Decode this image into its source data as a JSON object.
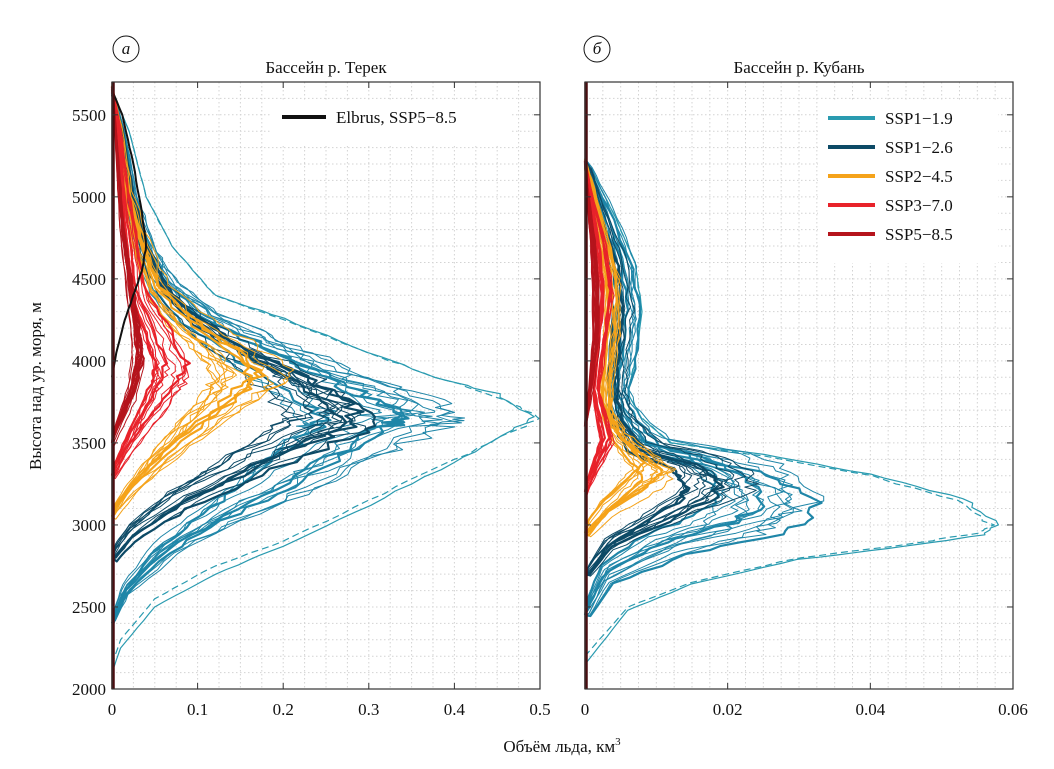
{
  "chart_data": [
    {
      "type": "line",
      "panel_letter": "а",
      "title": "Бассейн р. Терек",
      "xlabel": "Объём льда, км",
      "xlabel_superscript": "3",
      "ylabel": "Высота над ур. моря, м",
      "xlim": [
        0,
        0.5
      ],
      "ylim": [
        2000,
        5700
      ],
      "xticks": [
        "0",
        "0.1",
        "0.2",
        "0.3",
        "0.4",
        "0.5"
      ],
      "xtick_values": [
        0,
        0.1,
        0.2,
        0.3,
        0.4,
        0.5
      ],
      "yticks": [
        "2000",
        "2500",
        "3000",
        "3500",
        "4000",
        "4500",
        "5000",
        "5500"
      ],
      "ytick_values": [
        2000,
        2500,
        3000,
        3500,
        4000,
        4500,
        5000,
        5500
      ],
      "grid": true,
      "legend": {
        "placement": "top-right",
        "entries": [
          {
            "label": "Elbrus, SSP5−8.5",
            "color": "#111111"
          }
        ]
      },
      "series": [
        {
          "name": "SSP1-1.9 (initial, dashed)",
          "color": "#2a9bb0",
          "dashed": true,
          "points": [
            [
              0,
              2150
            ],
            [
              0.01,
              2300
            ],
            [
              0.05,
              2550
            ],
            [
              0.12,
              2750
            ],
            [
              0.2,
              2900
            ],
            [
              0.3,
              3150
            ],
            [
              0.4,
              3400
            ],
            [
              0.48,
              3600
            ],
            [
              0.5,
              3660
            ],
            [
              0.45,
              3780
            ],
            [
              0.38,
              3900
            ],
            [
              0.3,
              4050
            ],
            [
              0.2,
              4250
            ],
            [
              0.12,
              4400
            ],
            [
              0.07,
              4700
            ],
            [
              0.04,
              5000
            ],
            [
              0.02,
              5400
            ],
            [
              0,
              5650
            ]
          ]
        },
        {
          "name": "SSP1-1.9 (initial)",
          "color": "#2a9bb0",
          "dashed": false,
          "points": [
            [
              0,
              2100
            ],
            [
              0.01,
              2250
            ],
            [
              0.05,
              2500
            ],
            [
              0.12,
              2700
            ],
            [
              0.2,
              2870
            ],
            [
              0.3,
              3120
            ],
            [
              0.4,
              3380
            ],
            [
              0.47,
              3580
            ],
            [
              0.49,
              3660
            ],
            [
              0.45,
              3800
            ],
            [
              0.38,
              3900
            ],
            [
              0.3,
              4050
            ],
            [
              0.2,
              4260
            ],
            [
              0.12,
              4400
            ],
            [
              0.07,
              4700
            ],
            [
              0.04,
              5000
            ],
            [
              0.02,
              5400
            ],
            [
              0,
              5650
            ]
          ]
        },
        {
          "name": "SSP1-1.9",
          "color": "#1f86a8",
          "dashed": false,
          "points": [
            [
              0,
              2400
            ],
            [
              0.02,
              2600
            ],
            [
              0.08,
              2850
            ],
            [
              0.16,
              3050
            ],
            [
              0.25,
              3250
            ],
            [
              0.33,
              3450
            ],
            [
              0.4,
              3620
            ],
            [
              0.41,
              3660
            ],
            [
              0.37,
              3780
            ],
            [
              0.3,
              3920
            ],
            [
              0.22,
              4080
            ],
            [
              0.14,
              4250
            ],
            [
              0.08,
              4450
            ],
            [
              0.05,
              4700
            ],
            [
              0.03,
              5000
            ],
            [
              0.015,
              5400
            ],
            [
              0,
              5650
            ]
          ]
        },
        {
          "name": "SSP1-2.6",
          "color": "#0d4a66",
          "dashed": false,
          "points": [
            [
              0,
              2800
            ],
            [
              0.03,
              2950
            ],
            [
              0.1,
              3150
            ],
            [
              0.2,
              3350
            ],
            [
              0.3,
              3550
            ],
            [
              0.35,
              3650
            ],
            [
              0.32,
              3780
            ],
            [
              0.27,
              3920
            ],
            [
              0.2,
              4060
            ],
            [
              0.13,
              4240
            ],
            [
              0.08,
              4430
            ],
            [
              0.05,
              4700
            ],
            [
              0.03,
              5000
            ],
            [
              0.015,
              5400
            ],
            [
              0,
              5650
            ]
          ]
        },
        {
          "name": "SSP2-4.5",
          "color": "#f5a31a",
          "dashed": false,
          "points": [
            [
              0,
              3050
            ],
            [
              0.03,
              3200
            ],
            [
              0.08,
              3400
            ],
            [
              0.14,
              3600
            ],
            [
              0.2,
              3800
            ],
            [
              0.22,
              3900
            ],
            [
              0.18,
              4050
            ],
            [
              0.12,
              4220
            ],
            [
              0.07,
              4420
            ],
            [
              0.045,
              4700
            ],
            [
              0.025,
              5000
            ],
            [
              0.012,
              5400
            ],
            [
              0,
              5650
            ]
          ]
        },
        {
          "name": "SSP3-7.0",
          "color": "#e8222a",
          "dashed": false,
          "points": [
            [
              0,
              3300
            ],
            [
              0.02,
              3450
            ],
            [
              0.05,
              3650
            ],
            [
              0.08,
              3850
            ],
            [
              0.09,
              3950
            ],
            [
              0.07,
              4150
            ],
            [
              0.04,
              4400
            ],
            [
              0.03,
              4700
            ],
            [
              0.02,
              5000
            ],
            [
              0.01,
              5400
            ],
            [
              0,
              5650
            ]
          ]
        },
        {
          "name": "SSP5-8.5",
          "color": "#b5141c",
          "dashed": false,
          "points": [
            [
              0,
              3500
            ],
            [
              0.01,
              3600
            ],
            [
              0.03,
              3800
            ],
            [
              0.04,
              4000
            ],
            [
              0.035,
              4200
            ],
            [
              0.025,
              4500
            ],
            [
              0.015,
              4800
            ],
            [
              0.01,
              5100
            ],
            [
              0.005,
              5400
            ],
            [
              0,
              5650
            ]
          ]
        },
        {
          "name": "Elbrus, SSP5-8.5",
          "color": "#111111",
          "dashed": false,
          "points": [
            [
              0,
              3900
            ],
            [
              0.005,
              4050
            ],
            [
              0.015,
              4250
            ],
            [
              0.025,
              4400
            ],
            [
              0.035,
              4550
            ],
            [
              0.04,
              4700
            ],
            [
              0.035,
              4900
            ],
            [
              0.025,
              5200
            ],
            [
              0.012,
              5500
            ],
            [
              0,
              5650
            ]
          ]
        }
      ]
    },
    {
      "type": "line",
      "panel_letter": "б",
      "title": "Бассейн р. Кубань",
      "xlim": [
        0,
        0.06
      ],
      "ylim": [
        2000,
        5700
      ],
      "xticks": [
        "0",
        "0.02",
        "0.04",
        "0.06"
      ],
      "xtick_values": [
        0,
        0.02,
        0.04,
        0.06
      ],
      "grid": true,
      "legend": {
        "placement": "top-right",
        "entries": [
          {
            "label": "SSP1−1.9",
            "color": "#2a9bb0"
          },
          {
            "label": "SSP1−2.6",
            "color": "#0d4a66"
          },
          {
            "label": "SSP2−4.5",
            "color": "#f5a31a"
          },
          {
            "label": "SSP3−7.0",
            "color": "#e8222a"
          },
          {
            "label": "SSP5−8.5",
            "color": "#b5141c"
          }
        ]
      },
      "series": [
        {
          "name": "SSP1-1.9 (initial, dashed)",
          "color": "#2a9bb0",
          "dashed": true,
          "points": [
            [
              0,
              2200
            ],
            [
              0.006,
              2500
            ],
            [
              0.015,
              2650
            ],
            [
              0.03,
              2800
            ],
            [
              0.045,
              2880
            ],
            [
              0.055,
              2950
            ],
            [
              0.057,
              3000
            ],
            [
              0.052,
              3150
            ],
            [
              0.04,
              3300
            ],
            [
              0.025,
              3420
            ],
            [
              0.012,
              3500
            ],
            [
              0.008,
              3650
            ],
            [
              0.006,
              3800
            ],
            [
              0.007,
              4000
            ],
            [
              0.008,
              4300
            ],
            [
              0.007,
              4600
            ],
            [
              0.004,
              4900
            ],
            [
              0.001,
              5150
            ],
            [
              0,
              5200
            ]
          ]
        },
        {
          "name": "SSP1-1.9 (initial)",
          "color": "#2a9bb0",
          "dashed": false,
          "points": [
            [
              0,
              2150
            ],
            [
              0.006,
              2480
            ],
            [
              0.015,
              2640
            ],
            [
              0.03,
              2790
            ],
            [
              0.045,
              2870
            ],
            [
              0.056,
              2940
            ],
            [
              0.058,
              3000
            ],
            [
              0.053,
              3160
            ],
            [
              0.04,
              3310
            ],
            [
              0.025,
              3430
            ],
            [
              0.012,
              3500
            ],
            [
              0.008,
              3650
            ],
            [
              0.006,
              3800
            ],
            [
              0.007,
              4000
            ],
            [
              0.008,
              4300
            ],
            [
              0.007,
              4600
            ],
            [
              0.004,
              4900
            ],
            [
              0.001,
              5150
            ],
            [
              0,
              5200
            ]
          ]
        },
        {
          "name": "SSP1-1.9",
          "color": "#1f86a8",
          "dashed": false,
          "points": [
            [
              0,
              2450
            ],
            [
              0.004,
              2700
            ],
            [
              0.015,
              2880
            ],
            [
              0.028,
              3000
            ],
            [
              0.033,
              3100
            ],
            [
              0.032,
              3250
            ],
            [
              0.025,
              3380
            ],
            [
              0.012,
              3480
            ],
            [
              0.008,
              3650
            ],
            [
              0.006,
              3800
            ],
            [
              0.007,
              4000
            ],
            [
              0.008,
              4300
            ],
            [
              0.007,
              4600
            ],
            [
              0.004,
              4900
            ],
            [
              0.001,
              5150
            ],
            [
              0,
              5200
            ]
          ]
        },
        {
          "name": "SSP1-2.6",
          "color": "#0d4a66",
          "dashed": false,
          "points": [
            [
              0,
              2700
            ],
            [
              0.005,
              2900
            ],
            [
              0.015,
              3050
            ],
            [
              0.024,
              3200
            ],
            [
              0.025,
              3300
            ],
            [
              0.02,
              3400
            ],
            [
              0.011,
              3480
            ],
            [
              0.007,
              3650
            ],
            [
              0.006,
              3800
            ],
            [
              0.006,
              4000
            ],
            [
              0.007,
              4300
            ],
            [
              0.006,
              4600
            ],
            [
              0.003,
              4900
            ],
            [
              0.001,
              5150
            ],
            [
              0,
              5200
            ]
          ]
        },
        {
          "name": "SSP2-4.5",
          "color": "#f5a31a",
          "dashed": false,
          "points": [
            [
              0,
              2950
            ],
            [
              0.004,
              3100
            ],
            [
              0.01,
              3250
            ],
            [
              0.013,
              3330
            ],
            [
              0.01,
              3420
            ],
            [
              0.006,
              3550
            ],
            [
              0.004,
              3700
            ],
            [
              0.004,
              3900
            ],
            [
              0.005,
              4200
            ],
            [
              0.005,
              4500
            ],
            [
              0.003,
              4800
            ],
            [
              0.001,
              5100
            ],
            [
              0,
              5200
            ]
          ]
        },
        {
          "name": "SSP3-7.0",
          "color": "#e8222a",
          "dashed": false,
          "points": [
            [
              0,
              3200
            ],
            [
              0.002,
              3350
            ],
            [
              0.004,
              3500
            ],
            [
              0.003,
              3650
            ],
            [
              0.002,
              3800
            ],
            [
              0.003,
              4100
            ],
            [
              0.004,
              4400
            ],
            [
              0.003,
              4700
            ],
            [
              0.001,
              5000
            ],
            [
              0,
              5200
            ]
          ]
        },
        {
          "name": "SSP5-8.5",
          "color": "#b5141c",
          "dashed": false,
          "points": [
            [
              0,
              3600
            ],
            [
              0.001,
              3800
            ],
            [
              0.002,
              4100
            ],
            [
              0.002,
              4400
            ],
            [
              0.0015,
              4700
            ],
            [
              0.0005,
              5000
            ],
            [
              0,
              5200
            ]
          ]
        }
      ]
    }
  ]
}
